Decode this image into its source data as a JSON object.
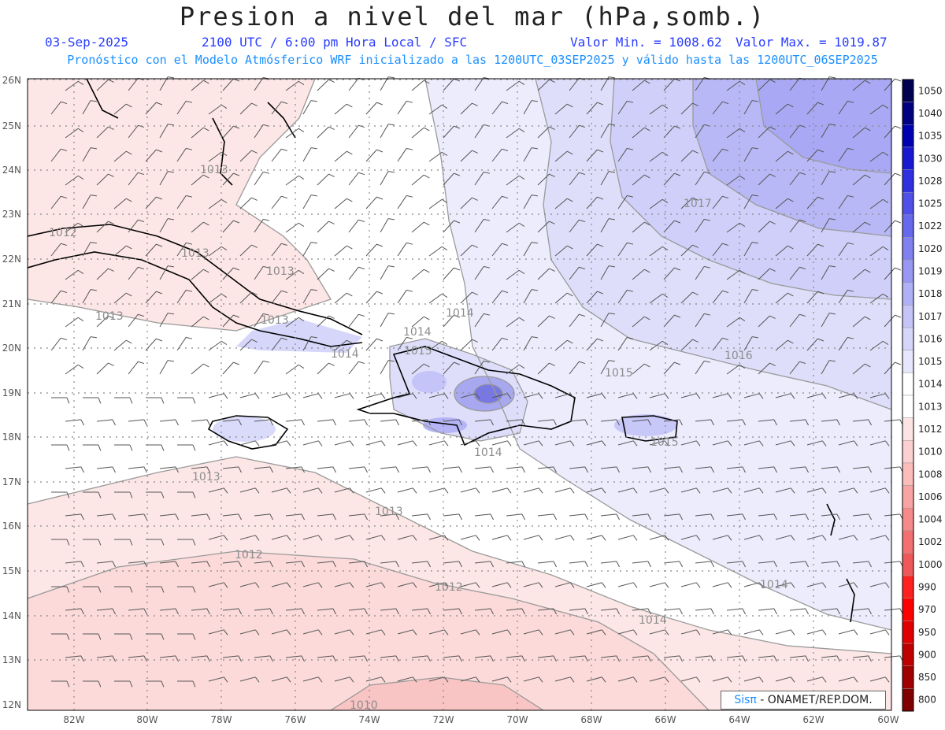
{
  "header": {
    "title": "Presion a nivel del mar (hPa,somb.)",
    "date": "03-Sep-2025",
    "valid_time": "2100 UTC / 6:00 pm Hora Local / SFC",
    "min_label": "Valor Min. = 1008.62",
    "max_label": "Valor Max. = 1019.87",
    "model_line": "Pronóstico con el Modelo Atmósferico WRF inicializado a las 1200UTC_03SEP2025 y válido hasta las  1200UTC_06SEP2025"
  },
  "axes": {
    "lat_labels": [
      "26N",
      "25N",
      "24N",
      "23N",
      "22N",
      "21N",
      "20N",
      "19N",
      "18N",
      "17N",
      "16N",
      "15N",
      "14N",
      "13N",
      "12N"
    ],
    "lon_labels": [
      "82W",
      "80W",
      "78W",
      "76W",
      "74W",
      "72W",
      "70W",
      "68W",
      "66W",
      "64W",
      "62W",
      "60W"
    ]
  },
  "colorbar": {
    "levels": [
      "1050",
      "1040",
      "1035",
      "1030",
      "1028",
      "1025",
      "1022",
      "1020",
      "1019",
      "1018",
      "1017",
      "1016",
      "1015",
      "1014",
      "1013",
      "1012",
      "1010",
      "1008",
      "1006",
      "1004",
      "1002",
      "1000",
      "990",
      "970",
      "950",
      "900",
      "850",
      "800"
    ],
    "colors": [
      "#000050",
      "#000080",
      "#0000b0",
      "#1818d0",
      "#3030e0",
      "#5050e8",
      "#6868ec",
      "#8080f0",
      "#9898f4",
      "#b0b0f6",
      "#c4c4f8",
      "#d6d6fa",
      "#e6e6fc",
      "#ffffff",
      "#ffffff",
      "#fde4e4",
      "#fcd0d0",
      "#fbbcbc",
      "#f9a4a4",
      "#f68a8a",
      "#f27070",
      "#ee5858",
      "#ff2020",
      "#ff0000",
      "#e00000",
      "#c00000",
      "#a00000",
      "#800000"
    ]
  },
  "contour_labels": [
    "1013",
    "1012",
    "1013",
    "1013",
    "1014",
    "1014",
    "1015",
    "1014",
    "1015",
    "1015",
    "1017",
    "1016",
    "1013",
    "1013",
    "1012",
    "1012",
    "1013",
    "1014",
    "1010",
    "1014",
    "1013",
    "1014"
  ],
  "credit": {
    "brand": "Sisπ",
    "org": "- ONAMET/REP.DOM."
  }
}
